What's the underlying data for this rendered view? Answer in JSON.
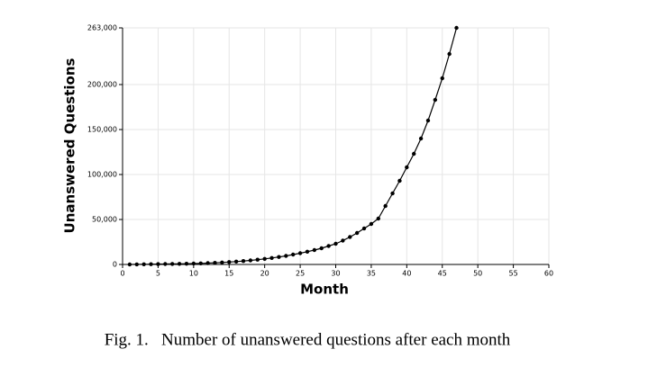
{
  "chart_data": {
    "type": "line",
    "x_label": "Month",
    "y_label": "Unanswered Questions",
    "caption": "Fig. 1.   Number of unanswered questions after each month",
    "x": [
      1,
      2,
      3,
      4,
      5,
      6,
      7,
      8,
      9,
      10,
      11,
      12,
      13,
      14,
      15,
      16,
      17,
      18,
      19,
      20,
      21,
      22,
      23,
      24,
      25,
      26,
      27,
      28,
      29,
      30,
      31,
      32,
      33,
      34,
      35,
      36,
      37,
      38,
      39,
      40,
      41,
      42,
      43,
      44,
      45,
      46,
      47
    ],
    "series": [
      {
        "name": "Unanswered Questions",
        "color": "#000000",
        "values": [
          0,
          100,
          200,
          300,
          400,
          500,
          600,
          700,
          800,
          1000,
          1200,
          1500,
          1800,
          2200,
          2700,
          3200,
          3800,
          4500,
          5300,
          6200,
          7200,
          8300,
          9500,
          11000,
          12500,
          14200,
          16000,
          18000,
          20500,
          23000,
          26500,
          30500,
          35000,
          40000,
          45000,
          51000,
          65000,
          79000,
          93000,
          108000,
          123000,
          140000,
          160000,
          183000,
          207000,
          234000,
          263000
        ]
      }
    ],
    "xlim": [
      0,
      60
    ],
    "xticks": [
      0,
      5,
      10,
      15,
      20,
      25,
      30,
      35,
      40,
      45,
      50,
      55,
      60
    ],
    "ylim": [
      0,
      263000
    ],
    "yticks": [
      0,
      {
        "value": 50000,
        "label": "50,000"
      },
      {
        "value": 100000,
        "label": "100,000"
      },
      {
        "value": 150000,
        "label": "150,000"
      },
      {
        "value": 200000,
        "label": "200,000"
      },
      {
        "value": 263000,
        "label": "263,000"
      }
    ],
    "grid": true
  }
}
